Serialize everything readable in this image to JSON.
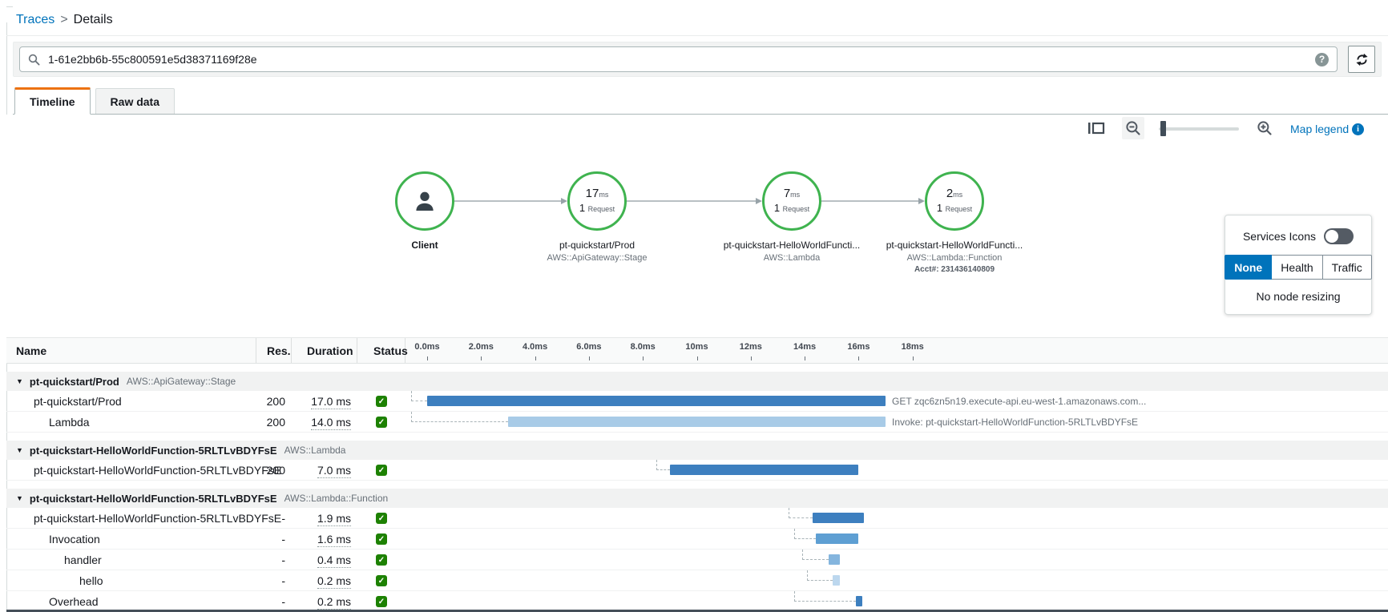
{
  "breadcrumb": {
    "traces": "Traces",
    "separator": ">",
    "details": "Details"
  },
  "search": {
    "value": "1-61e2bb6b-55c800591e5d38371169f28e"
  },
  "tabs": {
    "timeline": "Timeline",
    "raw_data": "Raw data"
  },
  "map": {
    "legend_link": "Map legend",
    "node_ring_color": "#3fb34f",
    "nodes": [
      {
        "label": "Client",
        "sub": "",
        "sub2": "",
        "latency": "",
        "latency_unit": "",
        "count": "",
        "count_unit": "",
        "icon": "user"
      },
      {
        "label": "pt-quickstart/Prod",
        "sub": "AWS::ApiGateway::Stage",
        "sub2": "",
        "latency": "17",
        "latency_unit": "ms",
        "count": "1",
        "count_unit": "Request",
        "icon": ""
      },
      {
        "label": "pt-quickstart-HelloWorldFuncti...",
        "sub": "AWS::Lambda",
        "sub2": "",
        "latency": "7",
        "latency_unit": "ms",
        "count": "1",
        "count_unit": "Request",
        "icon": ""
      },
      {
        "label": "pt-quickstart-HelloWorldFuncti...",
        "sub": "AWS::Lambda::Function",
        "sub2": "Acct#: 231436140809",
        "latency": "2",
        "latency_unit": "ms",
        "count": "1",
        "count_unit": "Request",
        "icon": ""
      }
    ],
    "panel": {
      "toggle_label": "Services Icons",
      "modes": [
        "None",
        "Health",
        "Traffic"
      ],
      "active_mode": "None",
      "note": "No node resizing"
    }
  },
  "table": {
    "columns": {
      "name": "Name",
      "res": "Res.",
      "duration": "Duration",
      "status": "Status"
    },
    "ticks": [
      {
        "label": "0.0ms",
        "ms": 0
      },
      {
        "label": "2.0ms",
        "ms": 2
      },
      {
        "label": "4.0ms",
        "ms": 4
      },
      {
        "label": "6.0ms",
        "ms": 6
      },
      {
        "label": "8.0ms",
        "ms": 8
      },
      {
        "label": "10ms",
        "ms": 10
      },
      {
        "label": "12ms",
        "ms": 12
      },
      {
        "label": "14ms",
        "ms": 14
      },
      {
        "label": "16ms",
        "ms": 16
      },
      {
        "label": "18ms",
        "ms": 18
      }
    ],
    "rows": [
      {
        "kind": "group",
        "name": "pt-quickstart/Prod",
        "type": "AWS::ApiGateway::Stage"
      },
      {
        "kind": "span",
        "name": "pt-quickstart/Prod",
        "indent": 1,
        "res": "200",
        "duration": "17.0 ms",
        "status": "ok",
        "bar_start_ms": 0,
        "bar_end_ms": 17,
        "bar_color": "#3d7fbf",
        "connector_from_ms": -0.6,
        "bar_label": "GET zqc6zn5n19.execute-api.eu-west-1.amazonaws.com..."
      },
      {
        "kind": "span",
        "name": "Lambda",
        "indent": 2,
        "res": "200",
        "duration": "14.0 ms",
        "status": "ok",
        "bar_start_ms": 3,
        "bar_end_ms": 17,
        "bar_color": "#a8cbe7",
        "connector_from_ms": -0.6,
        "bar_label": "Invoke: pt-quickstart-HelloWorldFunction-5RLTLvBDYFsE"
      },
      {
        "kind": "group",
        "name": "pt-quickstart-HelloWorldFunction-5RLTLvBDYFsE",
        "type": "AWS::Lambda"
      },
      {
        "kind": "span",
        "name": "pt-quickstart-HelloWorldFunction-5RLTLvBDYFsE",
        "indent": 1,
        "res": "200",
        "duration": "7.0 ms",
        "status": "ok",
        "bar_start_ms": 9,
        "bar_end_ms": 16,
        "bar_color": "#3d7fbf",
        "connector_from_ms": 8.5,
        "bar_label": ""
      },
      {
        "kind": "group",
        "name": "pt-quickstart-HelloWorldFunction-5RLTLvBDYFsE",
        "type": "AWS::Lambda::Function"
      },
      {
        "kind": "span",
        "name": "pt-quickstart-HelloWorldFunction-5RLTLvBDYFsE",
        "indent": 1,
        "res": "-",
        "duration": "1.9 ms",
        "status": "ok",
        "bar_start_ms": 14.3,
        "bar_end_ms": 16.2,
        "bar_color": "#3d7fbf",
        "connector_from_ms": 13.4,
        "bar_label": ""
      },
      {
        "kind": "span",
        "name": "Invocation",
        "indent": 2,
        "res": "-",
        "duration": "1.6 ms",
        "status": "ok",
        "bar_start_ms": 14.4,
        "bar_end_ms": 16.0,
        "bar_color": "#5e9fd3",
        "connector_from_ms": 13.6,
        "bar_label": ""
      },
      {
        "kind": "span",
        "name": "handler",
        "indent": 3,
        "res": "-",
        "duration": "0.4 ms",
        "status": "ok",
        "bar_start_ms": 14.9,
        "bar_end_ms": 15.3,
        "bar_color": "#84b5de",
        "connector_from_ms": 13.9,
        "bar_label": ""
      },
      {
        "kind": "span",
        "name": "hello",
        "indent": 4,
        "res": "-",
        "duration": "0.2 ms",
        "status": "ok",
        "bar_start_ms": 15.05,
        "bar_end_ms": 15.3,
        "bar_color": "#bcd7ee",
        "connector_from_ms": 14.1,
        "bar_label": ""
      },
      {
        "kind": "span",
        "name": "Overhead",
        "indent": 2,
        "res": "-",
        "duration": "0.2 ms",
        "status": "ok",
        "bar_start_ms": 15.9,
        "bar_end_ms": 16.15,
        "bar_color": "#3d7fbf",
        "connector_from_ms": 13.6,
        "bar_label": ""
      }
    ]
  }
}
